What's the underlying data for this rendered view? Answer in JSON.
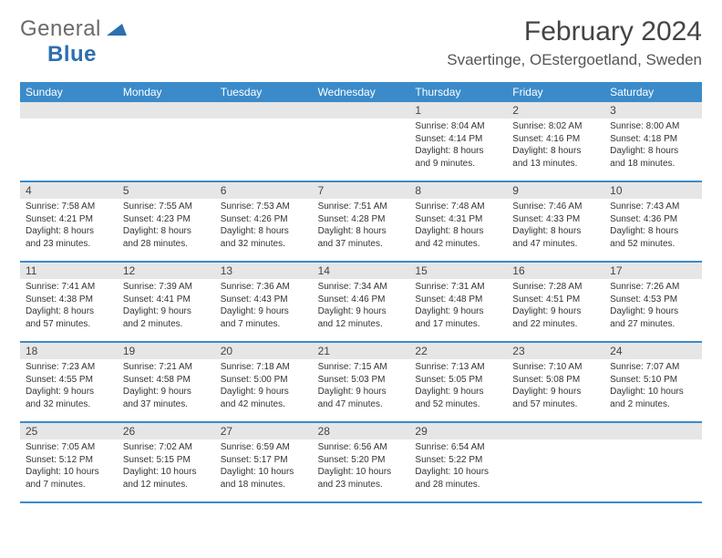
{
  "logo": {
    "word1": "General",
    "word2": "Blue"
  },
  "title": "February 2024",
  "location": "Svaertinge, OEstergoetland, Sweden",
  "colors": {
    "header_bg": "#3b8bca",
    "header_text": "#ffffff",
    "daynum_bg": "#e6e6e6",
    "rule": "#3b8bca",
    "logo_gray": "#6a6a6a",
    "logo_blue": "#2e6fb0"
  },
  "weekdays": [
    "Sunday",
    "Monday",
    "Tuesday",
    "Wednesday",
    "Thursday",
    "Friday",
    "Saturday"
  ],
  "weeks": [
    [
      {
        "empty": true
      },
      {
        "empty": true
      },
      {
        "empty": true
      },
      {
        "empty": true
      },
      {
        "num": "1",
        "sunrise": "Sunrise: 8:04 AM",
        "sunset": "Sunset: 4:14 PM",
        "day1": "Daylight: 8 hours",
        "day2": "and 9 minutes."
      },
      {
        "num": "2",
        "sunrise": "Sunrise: 8:02 AM",
        "sunset": "Sunset: 4:16 PM",
        "day1": "Daylight: 8 hours",
        "day2": "and 13 minutes."
      },
      {
        "num": "3",
        "sunrise": "Sunrise: 8:00 AM",
        "sunset": "Sunset: 4:18 PM",
        "day1": "Daylight: 8 hours",
        "day2": "and 18 minutes."
      }
    ],
    [
      {
        "num": "4",
        "sunrise": "Sunrise: 7:58 AM",
        "sunset": "Sunset: 4:21 PM",
        "day1": "Daylight: 8 hours",
        "day2": "and 23 minutes."
      },
      {
        "num": "5",
        "sunrise": "Sunrise: 7:55 AM",
        "sunset": "Sunset: 4:23 PM",
        "day1": "Daylight: 8 hours",
        "day2": "and 28 minutes."
      },
      {
        "num": "6",
        "sunrise": "Sunrise: 7:53 AM",
        "sunset": "Sunset: 4:26 PM",
        "day1": "Daylight: 8 hours",
        "day2": "and 32 minutes."
      },
      {
        "num": "7",
        "sunrise": "Sunrise: 7:51 AM",
        "sunset": "Sunset: 4:28 PM",
        "day1": "Daylight: 8 hours",
        "day2": "and 37 minutes."
      },
      {
        "num": "8",
        "sunrise": "Sunrise: 7:48 AM",
        "sunset": "Sunset: 4:31 PM",
        "day1": "Daylight: 8 hours",
        "day2": "and 42 minutes."
      },
      {
        "num": "9",
        "sunrise": "Sunrise: 7:46 AM",
        "sunset": "Sunset: 4:33 PM",
        "day1": "Daylight: 8 hours",
        "day2": "and 47 minutes."
      },
      {
        "num": "10",
        "sunrise": "Sunrise: 7:43 AM",
        "sunset": "Sunset: 4:36 PM",
        "day1": "Daylight: 8 hours",
        "day2": "and 52 minutes."
      }
    ],
    [
      {
        "num": "11",
        "sunrise": "Sunrise: 7:41 AM",
        "sunset": "Sunset: 4:38 PM",
        "day1": "Daylight: 8 hours",
        "day2": "and 57 minutes."
      },
      {
        "num": "12",
        "sunrise": "Sunrise: 7:39 AM",
        "sunset": "Sunset: 4:41 PM",
        "day1": "Daylight: 9 hours",
        "day2": "and 2 minutes."
      },
      {
        "num": "13",
        "sunrise": "Sunrise: 7:36 AM",
        "sunset": "Sunset: 4:43 PM",
        "day1": "Daylight: 9 hours",
        "day2": "and 7 minutes."
      },
      {
        "num": "14",
        "sunrise": "Sunrise: 7:34 AM",
        "sunset": "Sunset: 4:46 PM",
        "day1": "Daylight: 9 hours",
        "day2": "and 12 minutes."
      },
      {
        "num": "15",
        "sunrise": "Sunrise: 7:31 AM",
        "sunset": "Sunset: 4:48 PM",
        "day1": "Daylight: 9 hours",
        "day2": "and 17 minutes."
      },
      {
        "num": "16",
        "sunrise": "Sunrise: 7:28 AM",
        "sunset": "Sunset: 4:51 PM",
        "day1": "Daylight: 9 hours",
        "day2": "and 22 minutes."
      },
      {
        "num": "17",
        "sunrise": "Sunrise: 7:26 AM",
        "sunset": "Sunset: 4:53 PM",
        "day1": "Daylight: 9 hours",
        "day2": "and 27 minutes."
      }
    ],
    [
      {
        "num": "18",
        "sunrise": "Sunrise: 7:23 AM",
        "sunset": "Sunset: 4:55 PM",
        "day1": "Daylight: 9 hours",
        "day2": "and 32 minutes."
      },
      {
        "num": "19",
        "sunrise": "Sunrise: 7:21 AM",
        "sunset": "Sunset: 4:58 PM",
        "day1": "Daylight: 9 hours",
        "day2": "and 37 minutes."
      },
      {
        "num": "20",
        "sunrise": "Sunrise: 7:18 AM",
        "sunset": "Sunset: 5:00 PM",
        "day1": "Daylight: 9 hours",
        "day2": "and 42 minutes."
      },
      {
        "num": "21",
        "sunrise": "Sunrise: 7:15 AM",
        "sunset": "Sunset: 5:03 PM",
        "day1": "Daylight: 9 hours",
        "day2": "and 47 minutes."
      },
      {
        "num": "22",
        "sunrise": "Sunrise: 7:13 AM",
        "sunset": "Sunset: 5:05 PM",
        "day1": "Daylight: 9 hours",
        "day2": "and 52 minutes."
      },
      {
        "num": "23",
        "sunrise": "Sunrise: 7:10 AM",
        "sunset": "Sunset: 5:08 PM",
        "day1": "Daylight: 9 hours",
        "day2": "and 57 minutes."
      },
      {
        "num": "24",
        "sunrise": "Sunrise: 7:07 AM",
        "sunset": "Sunset: 5:10 PM",
        "day1": "Daylight: 10 hours",
        "day2": "and 2 minutes."
      }
    ],
    [
      {
        "num": "25",
        "sunrise": "Sunrise: 7:05 AM",
        "sunset": "Sunset: 5:12 PM",
        "day1": "Daylight: 10 hours",
        "day2": "and 7 minutes."
      },
      {
        "num": "26",
        "sunrise": "Sunrise: 7:02 AM",
        "sunset": "Sunset: 5:15 PM",
        "day1": "Daylight: 10 hours",
        "day2": "and 12 minutes."
      },
      {
        "num": "27",
        "sunrise": "Sunrise: 6:59 AM",
        "sunset": "Sunset: 5:17 PM",
        "day1": "Daylight: 10 hours",
        "day2": "and 18 minutes."
      },
      {
        "num": "28",
        "sunrise": "Sunrise: 6:56 AM",
        "sunset": "Sunset: 5:20 PM",
        "day1": "Daylight: 10 hours",
        "day2": "and 23 minutes."
      },
      {
        "num": "29",
        "sunrise": "Sunrise: 6:54 AM",
        "sunset": "Sunset: 5:22 PM",
        "day1": "Daylight: 10 hours",
        "day2": "and 28 minutes."
      },
      {
        "empty": true
      },
      {
        "empty": true
      }
    ]
  ]
}
